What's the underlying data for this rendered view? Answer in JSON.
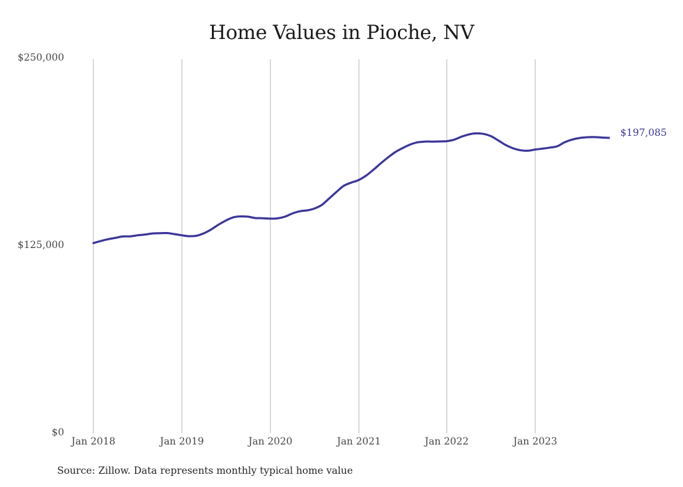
{
  "chart_data": {
    "type": "line",
    "title": "Home Values in Pioche, NV",
    "xlabel": "",
    "ylabel": "",
    "ylim": [
      0,
      250000
    ],
    "y_ticks": [
      "$0",
      "$125,000",
      "$250,000"
    ],
    "x_ticks": [
      "Jan 2018",
      "Jan 2019",
      "Jan 2020",
      "Jan 2021",
      "Jan 2022",
      "Jan 2023"
    ],
    "grid": {
      "vertical": true,
      "horizontal": false
    },
    "legend": null,
    "line_color": "#3b3598",
    "end_label": "$197,085",
    "series": [
      {
        "name": "Typical home value",
        "x": [
          "2018-01",
          "2018-02",
          "2018-03",
          "2018-04",
          "2018-05",
          "2018-06",
          "2018-07",
          "2018-08",
          "2018-09",
          "2018-10",
          "2018-11",
          "2018-12",
          "2019-01",
          "2019-02",
          "2019-03",
          "2019-04",
          "2019-05",
          "2019-06",
          "2019-07",
          "2019-08",
          "2019-09",
          "2019-10",
          "2019-11",
          "2019-12",
          "2020-01",
          "2020-02",
          "2020-03",
          "2020-04",
          "2020-05",
          "2020-06",
          "2020-07",
          "2020-08",
          "2020-09",
          "2020-10",
          "2020-11",
          "2020-12",
          "2021-01",
          "2021-02",
          "2021-03",
          "2021-04",
          "2021-05",
          "2021-06",
          "2021-07",
          "2021-08",
          "2021-09",
          "2021-10",
          "2021-11",
          "2021-12",
          "2022-01",
          "2022-02",
          "2022-03",
          "2022-04",
          "2022-05",
          "2022-06",
          "2022-07",
          "2022-08",
          "2022-09",
          "2022-10",
          "2022-11",
          "2022-12",
          "2023-01",
          "2023-02",
          "2023-03",
          "2023-04",
          "2023-05",
          "2023-06",
          "2023-07",
          "2023-08",
          "2023-09",
          "2023-10",
          "2023-11"
        ],
        "values": [
          126900,
          128300,
          129500,
          130400,
          131300,
          131400,
          132100,
          132600,
          133300,
          133500,
          133600,
          132900,
          132100,
          131500,
          131800,
          133400,
          136000,
          139200,
          142000,
          144100,
          144700,
          144500,
          143600,
          143500,
          143200,
          143400,
          144500,
          146600,
          148100,
          148700,
          149900,
          152300,
          156600,
          161000,
          165100,
          167200,
          168900,
          171800,
          175700,
          180000,
          184000,
          187600,
          190300,
          192600,
          194100,
          194600,
          194600,
          194700,
          194900,
          195900,
          197900,
          199400,
          200100,
          199700,
          198200,
          195300,
          192300,
          190100,
          188800,
          188500,
          189300,
          189900,
          190600,
          191500,
          194200,
          195900,
          197000,
          197500,
          197600,
          197300,
          197085
        ]
      }
    ]
  },
  "labels": {
    "title": "Home Values in Pioche, NV",
    "y0": "$0",
    "y1": "$125,000",
    "y2": "$250,000",
    "x0": "Jan 2018",
    "x1": "Jan 2019",
    "x2": "Jan 2020",
    "x3": "Jan 2021",
    "x4": "Jan 2022",
    "x5": "Jan 2023",
    "end_value": "$197,085",
    "source": "Source: Zillow. Data represents monthly typical home value"
  }
}
